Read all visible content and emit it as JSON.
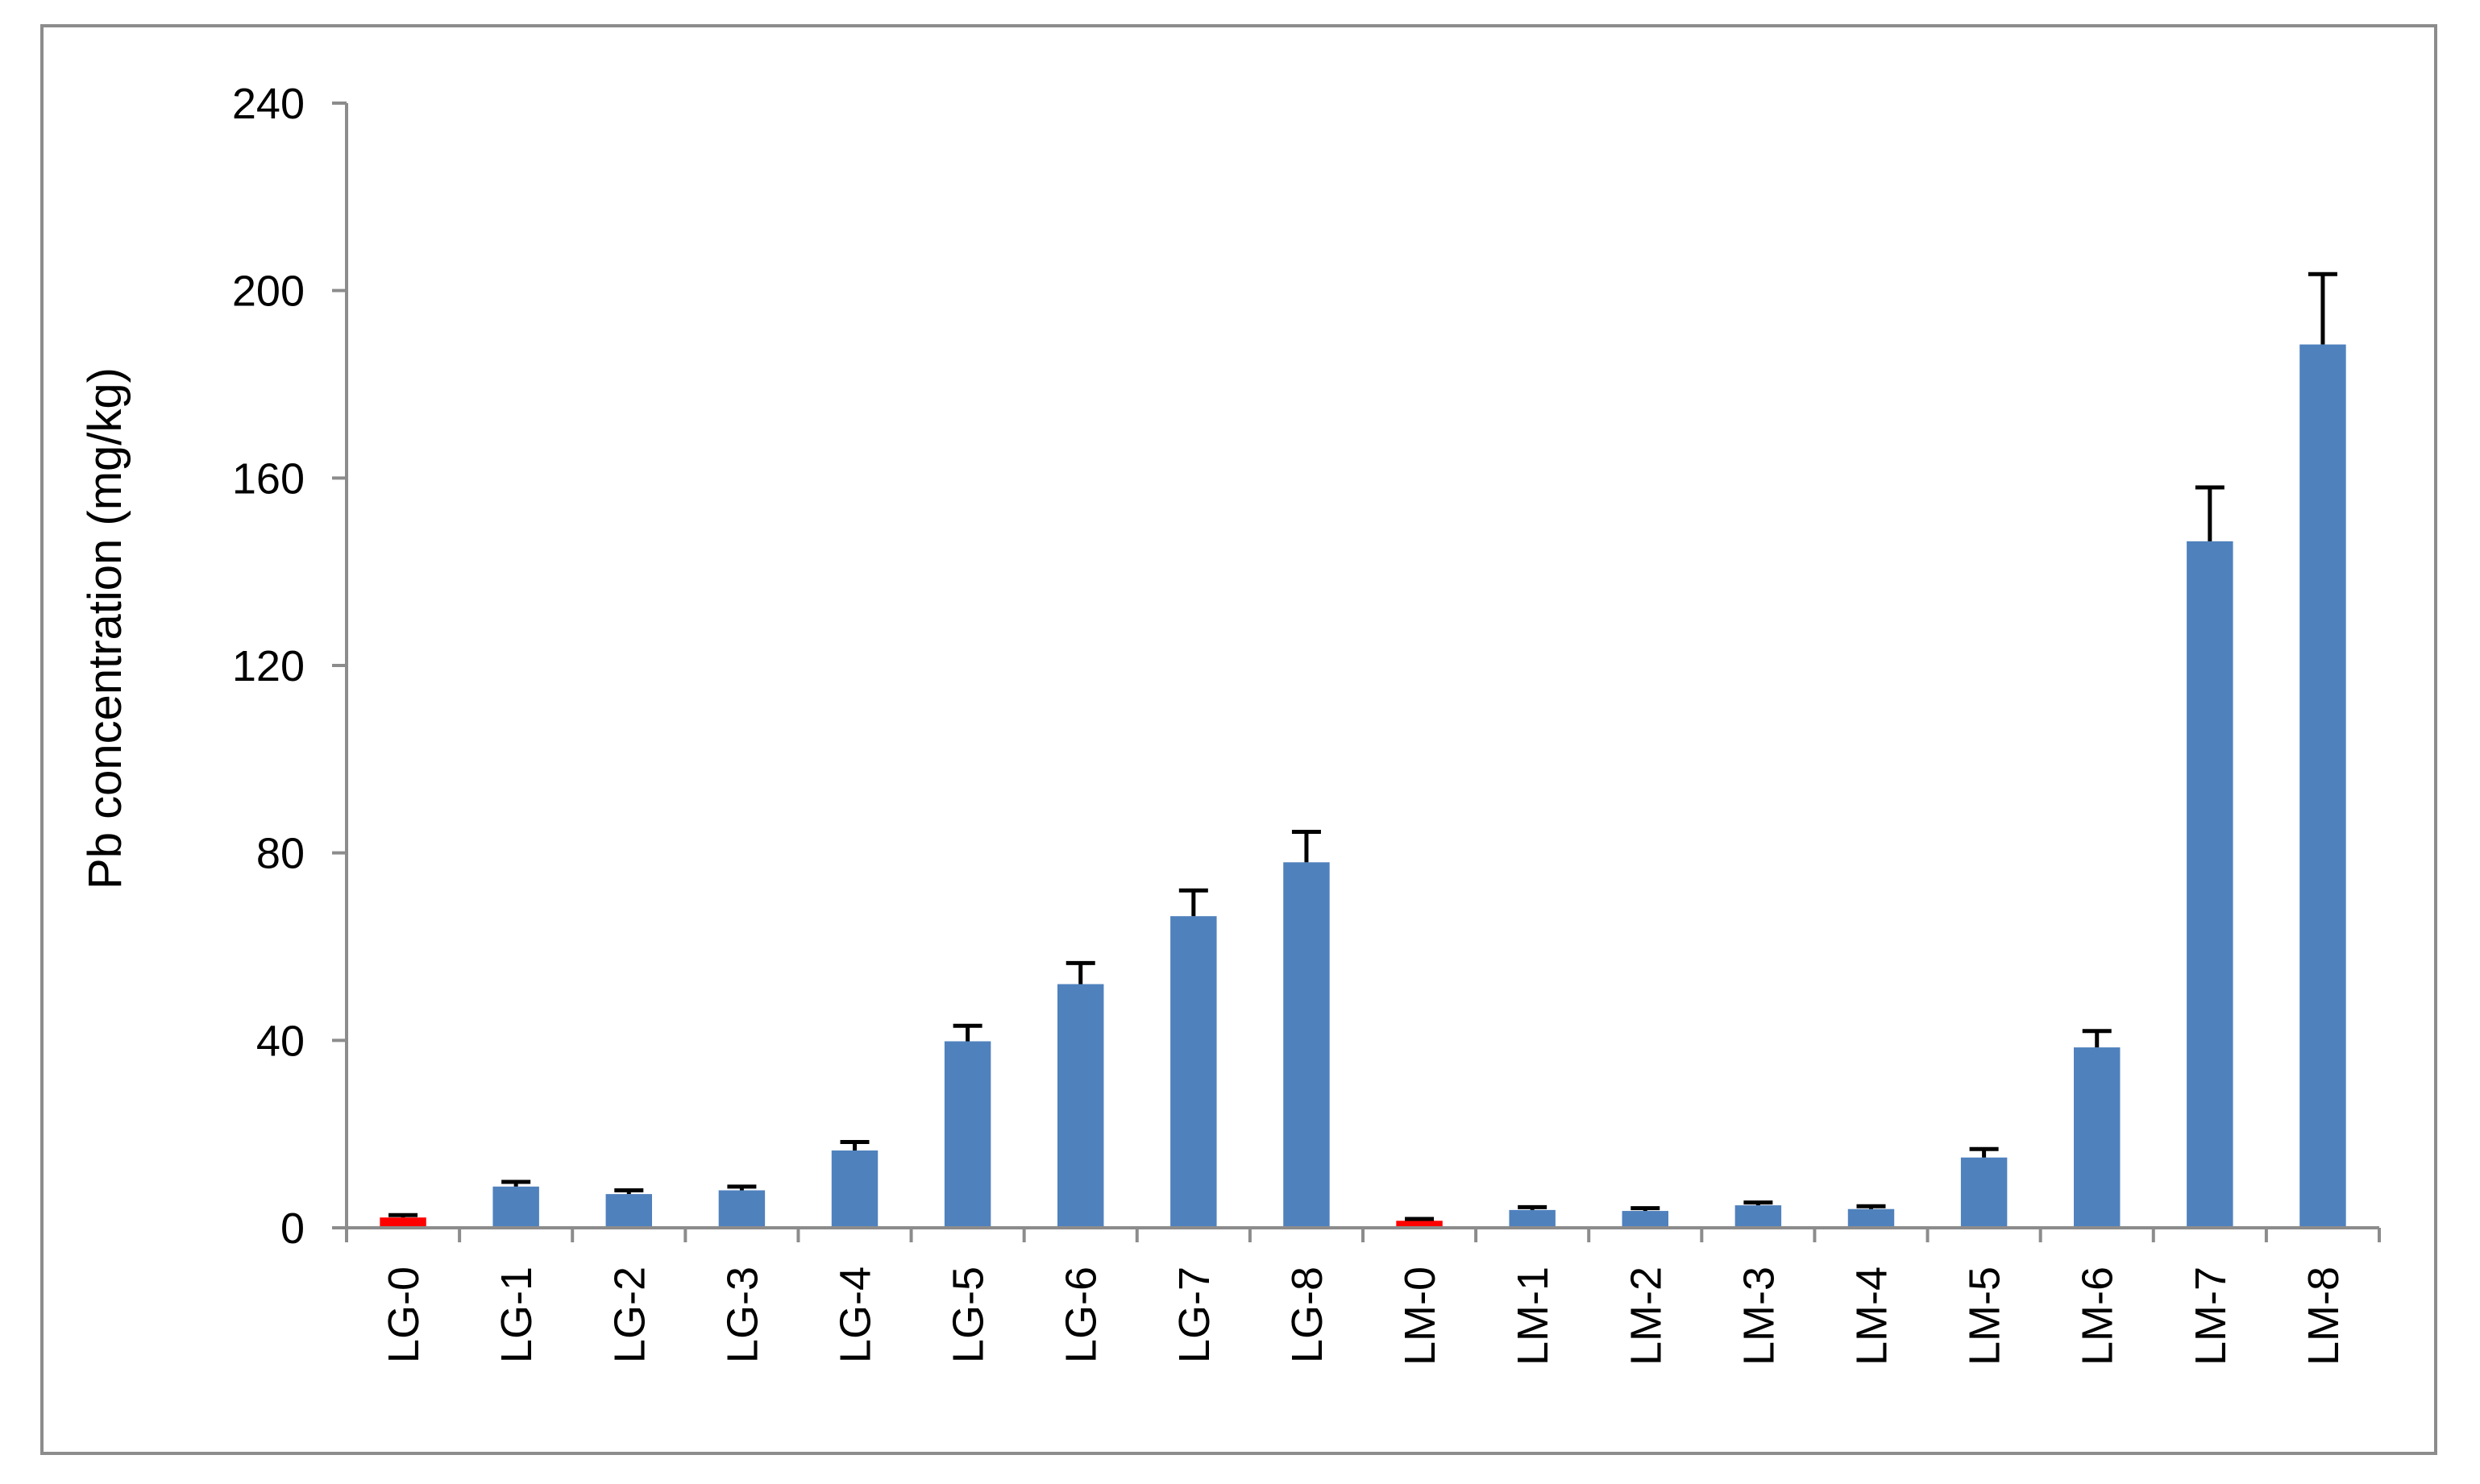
{
  "chart_data": {
    "type": "bar",
    "title": "",
    "xlabel": "",
    "ylabel": "Pb concentration (mg/kg)",
    "ylim": [
      0,
      240
    ],
    "yticks": [
      0,
      40,
      80,
      120,
      160,
      200,
      240
    ],
    "grid": false,
    "legend": "none",
    "categories": [
      "LG-0",
      "LG-1",
      "LG-2",
      "LG-3",
      "LG-4",
      "LG-5",
      "LG-6",
      "LG-7",
      "LG-8",
      "LM-0",
      "LM-1",
      "LM-2",
      "LM-3",
      "LM-4",
      "LM-5",
      "LM-6",
      "LM-7",
      "LM-8"
    ],
    "values": [
      2.2,
      8.8,
      7.2,
      8.0,
      16.5,
      39.8,
      52.0,
      66.5,
      78.0,
      1.5,
      3.8,
      3.6,
      4.8,
      4.0,
      15.0,
      38.5,
      146.5,
      188.5
    ],
    "errors": [
      0.5,
      1.0,
      0.8,
      0.8,
      1.8,
      3.3,
      4.5,
      5.5,
      6.5,
      0.4,
      0.6,
      0.6,
      0.6,
      0.6,
      1.8,
      3.5,
      11.5,
      15.0
    ],
    "colors": [
      "#ff0000",
      "#4f81bd",
      "#4f81bd",
      "#4f81bd",
      "#4f81bd",
      "#4f81bd",
      "#4f81bd",
      "#4f81bd",
      "#4f81bd",
      "#ff0000",
      "#4f81bd",
      "#4f81bd",
      "#4f81bd",
      "#4f81bd",
      "#4f81bd",
      "#4f81bd",
      "#4f81bd",
      "#4f81bd"
    ],
    "axis_color": "#8c8c8c",
    "error_color": "#000000"
  }
}
